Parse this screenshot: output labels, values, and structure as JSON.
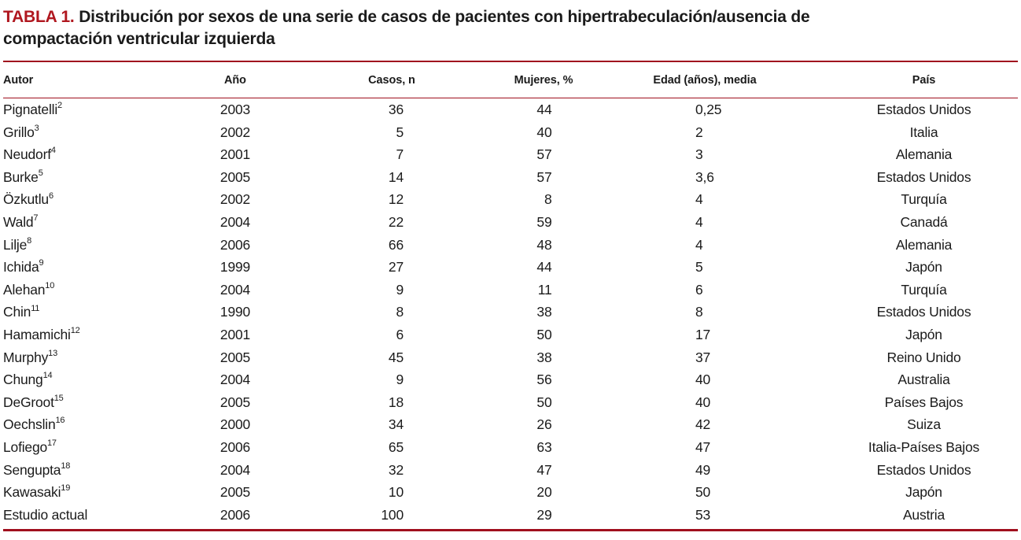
{
  "title": {
    "label": "TABLA 1.",
    "line1": "Distribución por sexos de una serie de casos de pacientes con hipertrabeculación/ausencia de",
    "line2": "compactación ventricular izquierda"
  },
  "colors": {
    "accent_red": "#b0171f",
    "rule_red": "#a00f1e"
  },
  "table": {
    "columns": [
      "Autor",
      "Año",
      "Casos, n",
      "Mujeres, %",
      "Edad (años), media",
      "País"
    ],
    "rows": [
      {
        "autor": "Pignatelli",
        "ref": "2",
        "ano": "2003",
        "casos": "36",
        "mujeres": "44",
        "edad": "0,25",
        "pais": "Estados Unidos"
      },
      {
        "autor": "Grillo",
        "ref": "3",
        "ano": "2002",
        "casos": "5",
        "mujeres": "40",
        "edad": "2",
        "pais": "Italia"
      },
      {
        "autor": "Neudorf",
        "ref": "4",
        "ano": "2001",
        "casos": "7",
        "mujeres": "57",
        "edad": "3",
        "pais": "Alemania"
      },
      {
        "autor": "Burke",
        "ref": "5",
        "ano": "2005",
        "casos": "14",
        "mujeres": "57",
        "edad": "3,6",
        "pais": "Estados Unidos"
      },
      {
        "autor": "Özkutlu",
        "ref": "6",
        "ano": "2002",
        "casos": "12",
        "mujeres": "8",
        "edad": "4",
        "pais": "Turquía"
      },
      {
        "autor": "Wald",
        "ref": "7",
        "ano": "2004",
        "casos": "22",
        "mujeres": "59",
        "edad": "4",
        "pais": "Canadá"
      },
      {
        "autor": "Lilje",
        "ref": "8",
        "ano": "2006",
        "casos": "66",
        "mujeres": "48",
        "edad": "4",
        "pais": "Alemania"
      },
      {
        "autor": "Ichida",
        "ref": "9",
        "ano": "1999",
        "casos": "27",
        "mujeres": "44",
        "edad": "5",
        "pais": "Japón"
      },
      {
        "autor": "Alehan",
        "ref": "10",
        "ano": "2004",
        "casos": "9",
        "mujeres": "11",
        "edad": "6",
        "pais": "Turquía"
      },
      {
        "autor": "Chin",
        "ref": "11",
        "ano": "1990",
        "casos": "8",
        "mujeres": "38",
        "edad": "8",
        "pais": "Estados Unidos"
      },
      {
        "autor": "Hamamichi",
        "ref": "12",
        "ano": "2001",
        "casos": "6",
        "mujeres": "50",
        "edad": "17",
        "pais": "Japón"
      },
      {
        "autor": "Murphy",
        "ref": "13",
        "ano": "2005",
        "casos": "45",
        "mujeres": "38",
        "edad": "37",
        "pais": "Reino Unido"
      },
      {
        "autor": "Chung",
        "ref": "14",
        "ano": "2004",
        "casos": "9",
        "mujeres": "56",
        "edad": "40",
        "pais": "Australia"
      },
      {
        "autor": "DeGroot",
        "ref": "15",
        "ano": "2005",
        "casos": "18",
        "mujeres": "50",
        "edad": "40",
        "pais": "Países Bajos"
      },
      {
        "autor": "Oechslin",
        "ref": "16",
        "ano": "2000",
        "casos": "34",
        "mujeres": "26",
        "edad": "42",
        "pais": "Suiza"
      },
      {
        "autor": "Lofiego",
        "ref": "17",
        "ano": "2006",
        "casos": "65",
        "mujeres": "63",
        "edad": "47",
        "pais": "Italia-Países Bajos"
      },
      {
        "autor": "Sengupta",
        "ref": "18",
        "ano": "2004",
        "casos": "32",
        "mujeres": "47",
        "edad": "49",
        "pais": "Estados Unidos"
      },
      {
        "autor": "Kawasaki",
        "ref": "19",
        "ano": "2005",
        "casos": "10",
        "mujeres": "20",
        "edad": "50",
        "pais": "Japón"
      },
      {
        "autor": "Estudio actual",
        "ref": "",
        "ano": "2006",
        "casos": "100",
        "mujeres": "29",
        "edad": "53",
        "pais": "Austria"
      }
    ]
  }
}
